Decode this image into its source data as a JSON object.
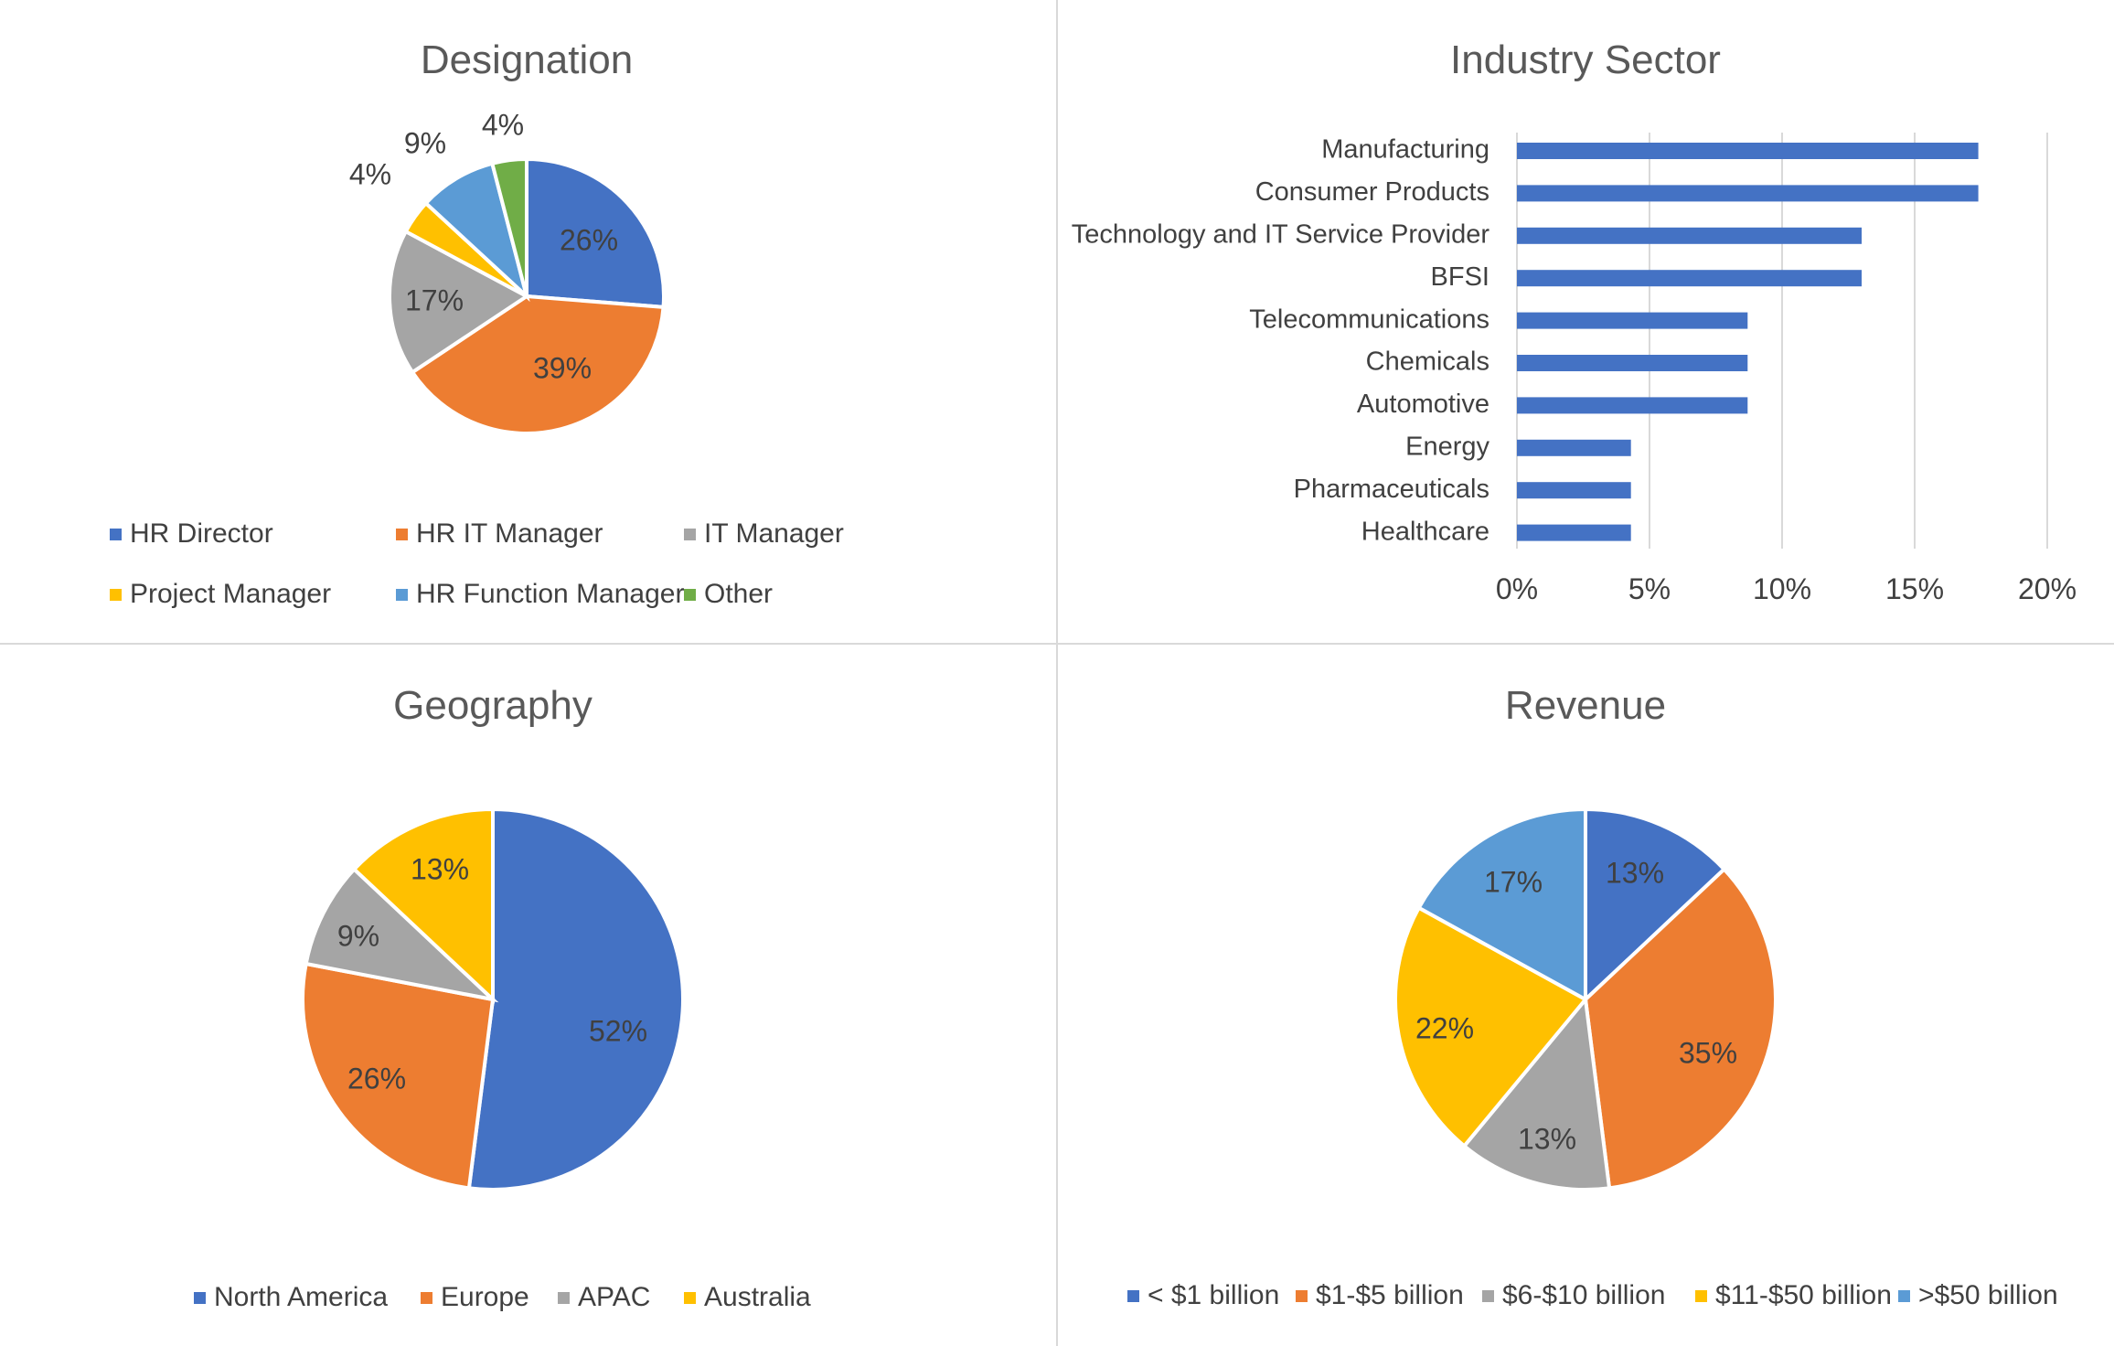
{
  "colors": {
    "blue": "#4472C4",
    "orange": "#ED7D31",
    "gray": "#A5A5A5",
    "yellow": "#FFC000",
    "lightblue": "#5B9BD5",
    "green": "#70AD47",
    "divider": "#D9D9D9",
    "grid": "#D9D9D9"
  },
  "chart_data": [
    {
      "id": "designation",
      "type": "pie",
      "title": "Designation",
      "legend_position": "bottom",
      "categories": [
        "HR Director",
        "HR IT Manager",
        "IT Manager",
        "Project Manager",
        "HR Function Manager",
        "Other"
      ],
      "values": [
        26,
        39,
        17,
        4,
        9,
        4
      ],
      "labels": [
        "26%",
        "39%",
        "17%",
        "4%",
        "9%",
        "4%"
      ],
      "colors": [
        "#4472C4",
        "#ED7D31",
        "#A5A5A5",
        "#FFC000",
        "#5B9BD5",
        "#70AD47"
      ]
    },
    {
      "id": "industry",
      "type": "bar",
      "orientation": "horizontal",
      "title": "Industry Sector",
      "categories": [
        "Manufacturing",
        "Consumer Products",
        "Technology and IT Service Provider",
        "BFSI",
        "Telecommunications",
        "Chemicals",
        "Automotive",
        "Energy",
        "Pharmaceuticals",
        "Healthcare"
      ],
      "values": [
        17.4,
        17.4,
        13,
        13,
        8.7,
        8.7,
        8.7,
        4.3,
        4.3,
        4.3
      ],
      "xlim": [
        0,
        20
      ],
      "ticks": [
        "0%",
        "5%",
        "10%",
        "15%",
        "20%"
      ],
      "tick_values": [
        0,
        5,
        10,
        15,
        20
      ],
      "grid": true,
      "color": "#4472C4"
    },
    {
      "id": "geography",
      "type": "pie",
      "title": "Geography",
      "legend_position": "bottom",
      "categories": [
        "North America",
        "Europe",
        "APAC",
        "Australia"
      ],
      "values": [
        52,
        26,
        9,
        13
      ],
      "labels": [
        "52%",
        "26%",
        "9%",
        "13%"
      ],
      "colors": [
        "#4472C4",
        "#ED7D31",
        "#A5A5A5",
        "#FFC000"
      ]
    },
    {
      "id": "revenue",
      "type": "pie",
      "title": "Revenue",
      "legend_position": "bottom",
      "categories": [
        "< $1 billion",
        "$1-$5 billion",
        "$6-$10 billion",
        "$11-$50 billion",
        ">$50 billion"
      ],
      "values": [
        13,
        35,
        13,
        22,
        17
      ],
      "labels": [
        "13%",
        "35%",
        "13%",
        "22%",
        "17%"
      ],
      "colors": [
        "#4472C4",
        "#ED7D31",
        "#A5A5A5",
        "#FFC000",
        "#5B9BD5"
      ]
    }
  ]
}
